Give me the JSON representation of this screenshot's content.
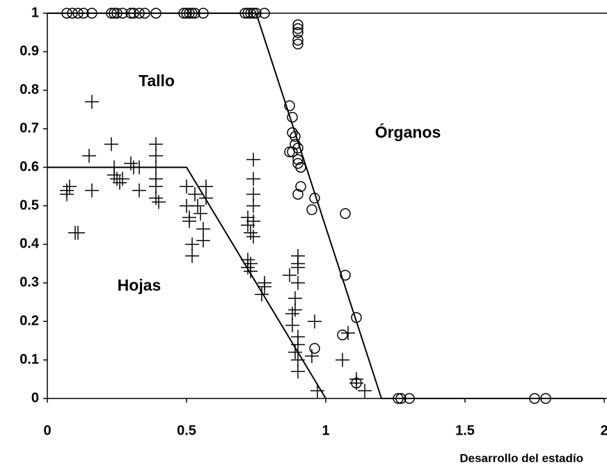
{
  "chart_data": {
    "type": "scatter",
    "x_label": "Desarrollo del estadío",
    "xlim": [
      0,
      2
    ],
    "xticks": [
      0,
      0.5,
      1,
      1.5,
      2
    ],
    "ylim": [
      0,
      1
    ],
    "yticks": [
      0,
      0.1,
      0.2,
      0.3,
      0.4,
      0.5,
      0.6,
      0.7,
      0.8,
      0.9,
      1
    ],
    "annotations": [
      "Tallo",
      "Órganos",
      "Hojas"
    ],
    "series": [
      {
        "marker": "plus",
        "color": "#000000",
        "x": [
          0.16,
          0.23,
          0.15,
          0.07,
          0.07,
          0.08,
          0.16,
          0.1,
          0.11,
          0.24,
          0.24,
          0.25,
          0.26,
          0.27,
          0.3,
          0.31,
          0.33,
          0.33,
          0.39,
          0.39,
          0.39,
          0.39,
          0.39,
          0.39,
          0.4,
          0.5,
          0.5,
          0.51,
          0.51,
          0.52,
          0.52,
          0.53,
          0.54,
          0.55,
          0.56,
          0.56,
          0.57,
          0.57,
          0.72,
          0.72,
          0.73,
          0.73,
          0.73,
          0.74,
          0.74,
          0.74,
          0.74,
          0.74,
          0.74,
          0.72,
          0.72,
          0.78,
          0.78,
          0.77,
          0.87,
          0.88,
          0.88,
          0.89,
          0.89,
          0.9,
          0.9,
          0.9,
          0.9,
          0.9,
          0.9,
          0.89,
          0.9,
          0.9,
          0.96,
          0.95,
          0.97,
          1.06,
          1.08,
          1.11,
          1.11,
          1.14
        ],
        "y": [
          0.77,
          0.66,
          0.63,
          0.54,
          0.53,
          0.55,
          0.54,
          0.43,
          0.43,
          0.6,
          0.58,
          0.57,
          0.56,
          0.57,
          0.61,
          0.6,
          0.6,
          0.54,
          0.66,
          0.63,
          0.6,
          0.57,
          0.55,
          0.52,
          0.51,
          0.55,
          0.5,
          0.47,
          0.46,
          0.4,
          0.37,
          0.53,
          0.5,
          0.48,
          0.44,
          0.41,
          0.55,
          0.52,
          0.47,
          0.45,
          0.43,
          0.35,
          0.33,
          0.62,
          0.57,
          0.53,
          0.5,
          0.46,
          0.42,
          0.36,
          0.34,
          0.3,
          0.29,
          0.27,
          0.32,
          0.22,
          0.19,
          0.26,
          0.23,
          0.37,
          0.35,
          0.34,
          0.3,
          0.16,
          0.14,
          0.12,
          0.1,
          0.07,
          0.2,
          0.11,
          0.02,
          0.1,
          0.17,
          0.05,
          0.04,
          0.02
        ]
      },
      {
        "marker": "circle",
        "color": "#000000",
        "x": [
          0.07,
          0.09,
          0.11,
          0.13,
          0.16,
          0.23,
          0.24,
          0.25,
          0.27,
          0.3,
          0.31,
          0.33,
          0.35,
          0.39,
          0.49,
          0.5,
          0.51,
          0.52,
          0.53,
          0.56,
          0.71,
          0.72,
          0.73,
          0.74,
          0.75,
          0.78,
          0.9,
          0.9,
          0.9,
          0.9,
          0.9,
          0.87,
          0.88,
          0.88,
          0.89,
          0.89,
          0.88,
          0.87,
          0.9,
          0.9,
          0.91,
          0.9,
          0.91,
          0.9,
          0.96,
          0.95,
          1.07,
          1.07,
          1.11,
          1.06,
          0.96,
          1.11,
          1.26,
          1.27,
          1.3,
          1.75,
          1.79
        ],
        "y": [
          1,
          1,
          1,
          1,
          1,
          1,
          1,
          1,
          1,
          1,
          1,
          1,
          1,
          1,
          1,
          1,
          1,
          1,
          1,
          1,
          1,
          1,
          1,
          1,
          1,
          1,
          0.97,
          0.96,
          0.95,
          0.93,
          0.92,
          0.76,
          0.73,
          0.69,
          0.68,
          0.66,
          0.64,
          0.64,
          0.65,
          0.62,
          0.6,
          0.61,
          0.55,
          0.53,
          0.52,
          0.49,
          0.48,
          0.32,
          0.21,
          0.165,
          0.13,
          0.04,
          0,
          0,
          0,
          0,
          0
        ]
      },
      {
        "marker": "line",
        "color": "#000000",
        "x": [
          0,
          0.5,
          1
        ],
        "y": [
          0.6,
          0.6,
          0
        ]
      },
      {
        "marker": "line",
        "color": "#000000",
        "x": [
          0,
          0.75,
          1.2,
          2
        ],
        "y": [
          1,
          1,
          0,
          0
        ]
      }
    ]
  }
}
